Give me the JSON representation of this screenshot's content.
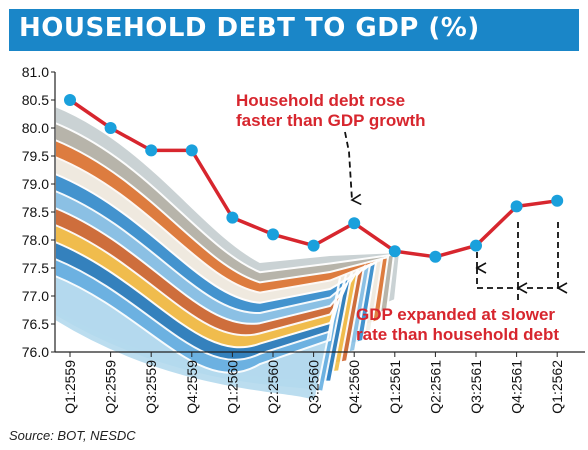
{
  "title": "HOUSEHOLD DEBT TO GDP (%)",
  "source": "Source: BOT, NESDC",
  "colors": {
    "title_bg": "#1a86c8",
    "line": "#d7262e",
    "marker": "#1aa0dc",
    "annotation": "#d7262e"
  },
  "chart_data": {
    "type": "line",
    "categories": [
      "Q1:2559",
      "Q2:2559",
      "Q3:2559",
      "Q4:2559",
      "Q1:2560",
      "Q2:2560",
      "Q3:2560",
      "Q4:2560",
      "Q1:2561",
      "Q2:2561",
      "Q3:2561",
      "Q4:2561",
      "Q1:2562"
    ],
    "series": [
      {
        "values": [
          80.5,
          80.0,
          79.6,
          79.6,
          78.4,
          78.1,
          77.9,
          78.3,
          77.8,
          77.7,
          77.9,
          78.6,
          78.7
        ]
      }
    ],
    "ylim": [
      76.0,
      81.0
    ],
    "yticks": [
      "81.0",
      "80.5",
      "80.0",
      "79.5",
      "79.0",
      "78.5",
      "78.0",
      "77.5",
      "77.0",
      "76.5",
      "76.0"
    ],
    "grid": false,
    "annotations": [
      {
        "lines": [
          "Household debt rose",
          "faster than GDP growth"
        ],
        "target": "Q4:2560"
      },
      {
        "lines": [
          "GDP expanded at slower",
          "rate than household debt"
        ],
        "targets": [
          "Q3:2561",
          "Q4:2561",
          "Q1:2562"
        ]
      }
    ]
  }
}
